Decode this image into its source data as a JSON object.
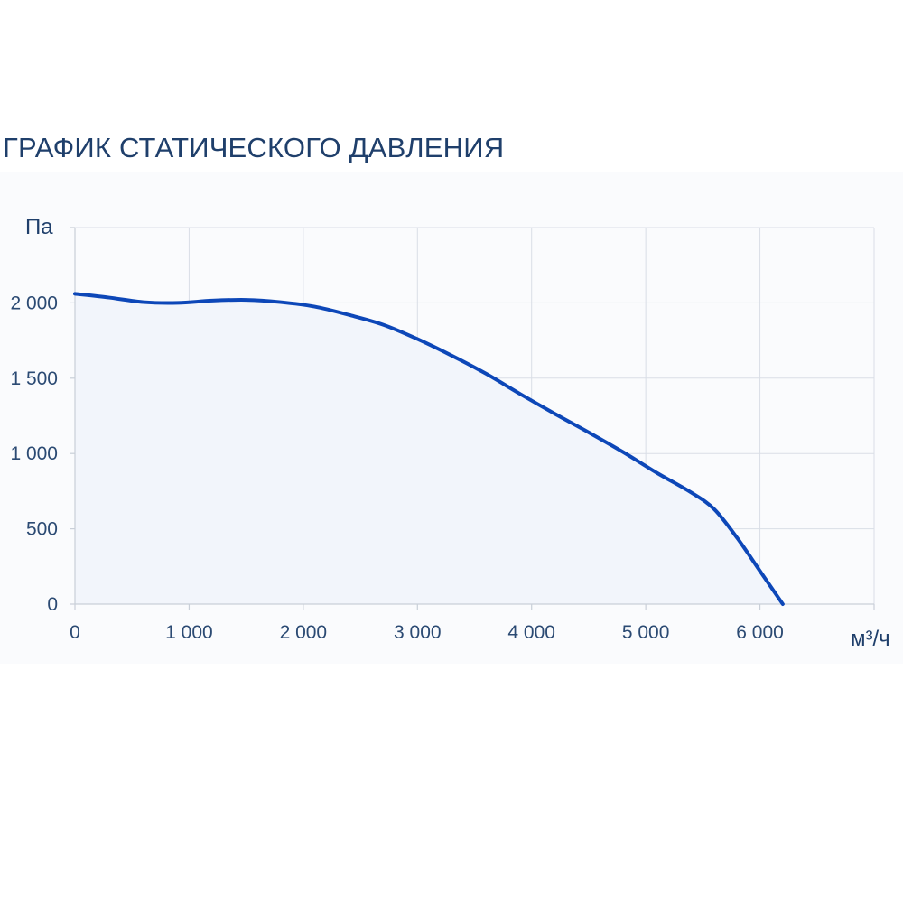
{
  "title": "ГРАФИК СТАТИЧЕСКОГО ДАВЛЕНИЯ",
  "colors": {
    "line": "#0d47b8",
    "fill": "#f2f5fb",
    "grid": "#d9dee6",
    "text": "#1f3f6b"
  },
  "chart_data": {
    "type": "area",
    "title": "ГРАФИК СТАТИЧЕСКОГО ДАВЛЕНИЯ",
    "xlabel": "м³/ч",
    "ylabel": "Па",
    "xlim": [
      0,
      7000
    ],
    "ylim": [
      0,
      2500
    ],
    "xticks": [
      0,
      1000,
      2000,
      3000,
      4000,
      5000,
      6000
    ],
    "xtick_labels": [
      "0",
      "1 000",
      "2 000",
      "3 000",
      "4 000",
      "5 000",
      "6 000"
    ],
    "yticks": [
      0,
      500,
      1000,
      1500,
      2000
    ],
    "ytick_labels": [
      "0",
      "500",
      "1 000",
      "1 500",
      "2 000"
    ],
    "grid": true,
    "series": [
      {
        "x": [
          0,
          300,
          600,
          900,
          1200,
          1500,
          1800,
          2100,
          2400,
          2700,
          3000,
          3300,
          3600,
          3900,
          4200,
          4500,
          4800,
          5100,
          5400,
          5600,
          5800,
          6000,
          6200
        ],
        "values": [
          2060,
          2035,
          2005,
          2000,
          2015,
          2020,
          2005,
          1975,
          1920,
          1855,
          1760,
          1650,
          1530,
          1395,
          1265,
          1140,
          1010,
          870,
          740,
          630,
          440,
          220,
          0
        ]
      }
    ]
  }
}
